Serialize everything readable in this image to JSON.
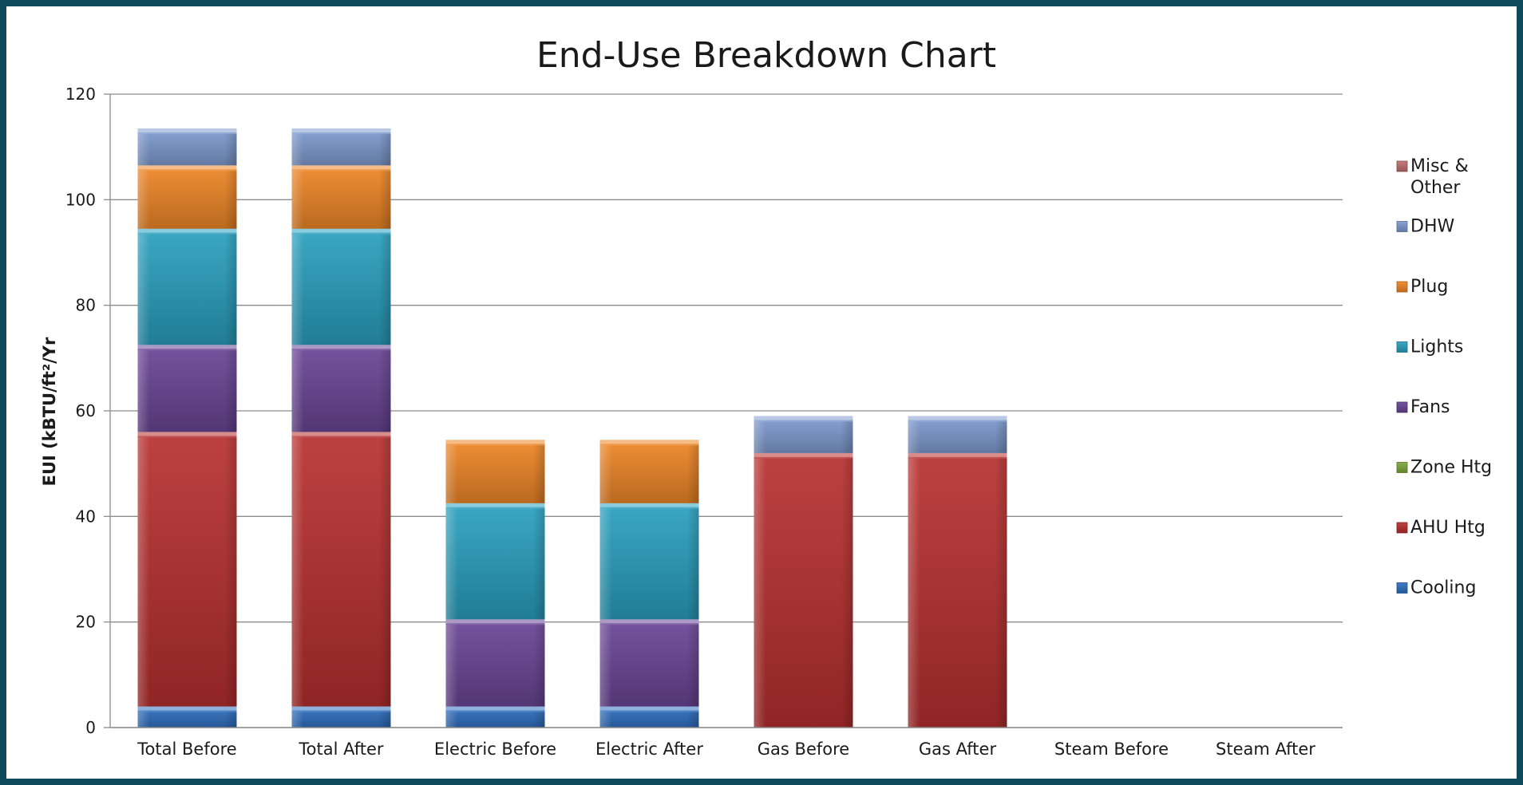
{
  "chart_data": {
    "type": "bar",
    "stacked": true,
    "title": "End-Use Breakdown Chart",
    "xlabel": "",
    "ylabel": "EUI (kBTU/ft²/Yr",
    "ylim": [
      0,
      120
    ],
    "y_ticks": [
      0,
      20,
      40,
      60,
      80,
      100,
      120
    ],
    "grid": true,
    "legend_position": "right",
    "categories": [
      "Total Before",
      "Total After",
      "Electric Before",
      "Electric After",
      "Gas Before",
      "Gas After",
      "Steam Before",
      "Steam After"
    ],
    "series": [
      {
        "name": "Cooling",
        "color": "#2f6fc0",
        "values": [
          4,
          4,
          4,
          4,
          0,
          0,
          0,
          0
        ]
      },
      {
        "name": "AHU Htg",
        "color": "#b83030",
        "values": [
          52,
          52,
          0,
          0,
          52,
          52,
          0,
          0
        ]
      },
      {
        "name": "Zone Htg",
        "color": "#7fa83c",
        "values": [
          0,
          0,
          0,
          0,
          0,
          0,
          0,
          0
        ]
      },
      {
        "name": "Fans",
        "color": "#6a4596",
        "values": [
          16.5,
          16.5,
          16.5,
          16.5,
          0,
          0,
          0,
          0
        ]
      },
      {
        "name": "Lights",
        "color": "#2aa0bf",
        "values": [
          22,
          22,
          22,
          22,
          0,
          0,
          0,
          0
        ]
      },
      {
        "name": "Plug",
        "color": "#ef8626",
        "values": [
          12,
          12,
          12,
          12,
          0,
          0,
          0,
          0
        ]
      },
      {
        "name": "DHW",
        "color": "#7f9bd0",
        "values": [
          7,
          7,
          0,
          0,
          7,
          7,
          0,
          0
        ]
      },
      {
        "name": "Misc & Other",
        "color": "#c07070",
        "values": [
          0,
          0,
          0,
          0,
          0,
          0,
          0,
          0
        ]
      }
    ],
    "legend": [
      "Misc & Other",
      "DHW",
      "Plug",
      "Lights",
      "Fans",
      "Zone Htg",
      "AHU Htg",
      "Cooling"
    ]
  }
}
